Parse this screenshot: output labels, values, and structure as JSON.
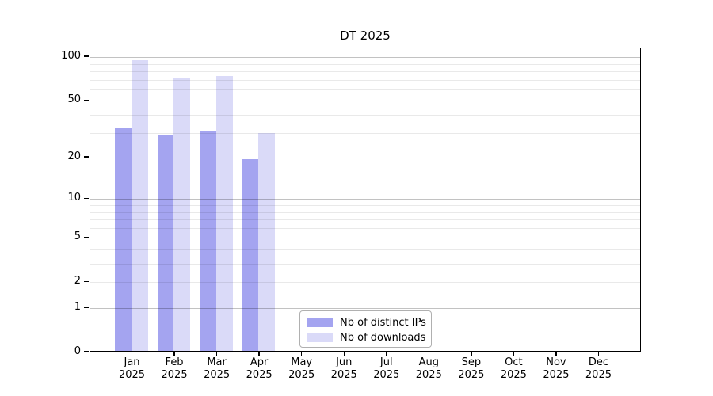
{
  "window": {
    "background": "#ffffff"
  },
  "chart_data": {
    "type": "bar",
    "title": "DT 2025",
    "x_categories": [
      "Jan",
      "Feb",
      "Mar",
      "Apr",
      "May",
      "Jun",
      "Jul",
      "Aug",
      "Sep",
      "Oct",
      "Nov",
      "Dec"
    ],
    "x_year": "2025",
    "series": [
      {
        "name": "Nb of distinct IPs",
        "color": "#a4a4f0",
        "values": [
          32,
          28,
          30,
          19,
          0,
          0,
          0,
          0,
          0,
          0,
          0,
          0
        ]
      },
      {
        "name": "Nb of downloads",
        "color": "#dadaf8",
        "values": [
          93,
          70,
          72,
          29,
          0,
          0,
          0,
          0,
          0,
          0,
          0,
          0
        ]
      }
    ],
    "y_axis": {
      "scale": "log(1+y)",
      "tick_labels": [
        100,
        50,
        20,
        10,
        5,
        2,
        1,
        0
      ],
      "major_gridlines": [
        100,
        10,
        1
      ],
      "minor_gridlines": [
        90,
        80,
        70,
        60,
        50,
        40,
        30,
        20,
        9,
        8,
        7,
        6,
        5,
        4,
        3,
        2
      ],
      "ylim": [
        0,
        115
      ]
    },
    "grid": {
      "major_color": "#c2c2c2",
      "minor_color": "#e9e9e9"
    },
    "legend": {
      "position": "inside-bottom-center",
      "entries": [
        "Nb of distinct IPs",
        "Nb of downloads"
      ]
    }
  }
}
